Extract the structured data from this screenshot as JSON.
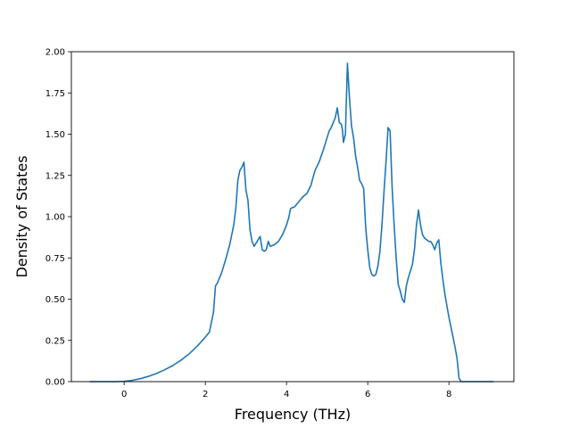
{
  "chart_data": {
    "type": "line",
    "title": "",
    "xlabel": "Frequency (THz)",
    "ylabel": "Density of States",
    "xlim": [
      -1.3,
      9.6
    ],
    "ylim": [
      0.0,
      2.0
    ],
    "xticks": [
      0,
      2,
      4,
      6,
      8
    ],
    "xtick_labels": [
      "0",
      "2",
      "4",
      "6",
      "8"
    ],
    "yticks": [
      0.0,
      0.25,
      0.5,
      0.75,
      1.0,
      1.25,
      1.5,
      1.75,
      2.0
    ],
    "ytick_labels": [
      "0.00",
      "0.25",
      "0.50",
      "0.75",
      "1.00",
      "1.25",
      "1.50",
      "1.75",
      "2.00"
    ],
    "grid": false,
    "line_color": "#1f77b4",
    "series": [
      {
        "x": [
          -0.85,
          -0.5,
          -0.2,
          0.0,
          0.2,
          0.4,
          0.6,
          0.8,
          1.0,
          1.2,
          1.4,
          1.6,
          1.8,
          2.0,
          2.1,
          2.2,
          2.25,
          2.3,
          2.4,
          2.5,
          2.6,
          2.7,
          2.75,
          2.8,
          2.85,
          2.9,
          2.95,
          3.0,
          3.05,
          3.1,
          3.15,
          3.2,
          3.3,
          3.35,
          3.4,
          3.45,
          3.5,
          3.55,
          3.6,
          3.7,
          3.8,
          3.9,
          4.0,
          4.05,
          4.1,
          4.2,
          4.3,
          4.4,
          4.5,
          4.6,
          4.7,
          4.8,
          4.9,
          5.0,
          5.05,
          5.1,
          5.15,
          5.2,
          5.25,
          5.3,
          5.35,
          5.38,
          5.4,
          5.45,
          5.5,
          5.55,
          5.6,
          5.65,
          5.7,
          5.75,
          5.8,
          5.85,
          5.9,
          5.95,
          6.0,
          6.05,
          6.1,
          6.15,
          6.2,
          6.25,
          6.3,
          6.35,
          6.4,
          6.45,
          6.5,
          6.55,
          6.6,
          6.65,
          6.7,
          6.75,
          6.8,
          6.85,
          6.9,
          6.95,
          7.0,
          7.05,
          7.1,
          7.15,
          7.2,
          7.25,
          7.3,
          7.35,
          7.4,
          7.45,
          7.5,
          7.55,
          7.6,
          7.65,
          7.7,
          7.75,
          7.8,
          7.85,
          7.9,
          7.95,
          8.0,
          8.05,
          8.1,
          8.15,
          8.2,
          8.25,
          8.3,
          8.35,
          8.5,
          8.8,
          9.1
        ],
        "y": [
          0.0,
          0.0,
          0.0,
          0.002,
          0.008,
          0.018,
          0.032,
          0.05,
          0.072,
          0.098,
          0.13,
          0.168,
          0.215,
          0.27,
          0.3,
          0.42,
          0.58,
          0.6,
          0.66,
          0.74,
          0.83,
          0.95,
          1.05,
          1.22,
          1.28,
          1.3,
          1.33,
          1.16,
          1.1,
          0.92,
          0.85,
          0.82,
          0.86,
          0.88,
          0.8,
          0.79,
          0.8,
          0.85,
          0.82,
          0.83,
          0.85,
          0.89,
          0.95,
          0.99,
          1.05,
          1.06,
          1.09,
          1.12,
          1.14,
          1.19,
          1.28,
          1.33,
          1.4,
          1.48,
          1.52,
          1.54,
          1.57,
          1.6,
          1.66,
          1.57,
          1.56,
          1.52,
          1.45,
          1.5,
          1.93,
          1.72,
          1.55,
          1.48,
          1.37,
          1.3,
          1.22,
          1.2,
          1.17,
          0.93,
          0.8,
          0.69,
          0.65,
          0.64,
          0.65,
          0.7,
          0.79,
          0.95,
          1.15,
          1.33,
          1.54,
          1.52,
          1.18,
          0.95,
          0.75,
          0.59,
          0.55,
          0.5,
          0.48,
          0.58,
          0.63,
          0.67,
          0.71,
          0.8,
          0.95,
          1.04,
          0.95,
          0.89,
          0.87,
          0.86,
          0.85,
          0.85,
          0.83,
          0.8,
          0.84,
          0.86,
          0.72,
          0.62,
          0.53,
          0.46,
          0.39,
          0.33,
          0.27,
          0.21,
          0.14,
          0.02,
          0.0,
          0.0,
          0.0,
          0.0,
          0.0
        ]
      }
    ]
  }
}
